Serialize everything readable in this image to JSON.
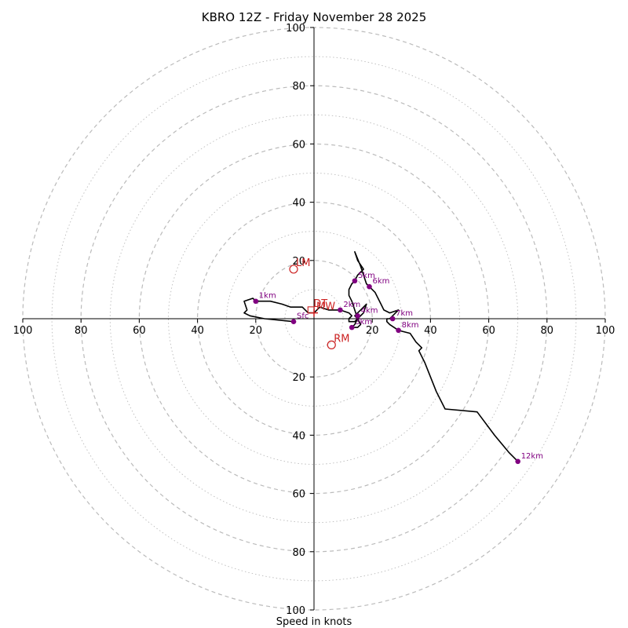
{
  "chart_data": {
    "type": "scatter",
    "subtype": "hodograph",
    "title": "KBRO 12Z - Friday November 28 2025",
    "xlabel": "Speed in knots",
    "ylabel": "",
    "xlim": [
      -100,
      100
    ],
    "ylim": [
      -100,
      100
    ],
    "ring_step_major": 20,
    "ring_step_minor": 10,
    "axis_tick_labels": [
      "100",
      "80",
      "60",
      "40",
      "20",
      "20",
      "40",
      "60",
      "80",
      "100"
    ],
    "axis_tick_values": [
      -100,
      -80,
      -60,
      -40,
      -20,
      20,
      40,
      60,
      80,
      100
    ],
    "colors": {
      "trace": "#000000",
      "height_marker": "#800080",
      "motion": "#cc2222",
      "grid": "#bbbbbb"
    },
    "trace": [
      [
        -7,
        -1
      ],
      [
        -17,
        0
      ],
      [
        -22,
        1
      ],
      [
        -24,
        2
      ],
      [
        -23,
        3
      ],
      [
        -24,
        6
      ],
      [
        -21,
        7
      ],
      [
        -20,
        6
      ],
      [
        -15,
        6
      ],
      [
        -11,
        5
      ],
      [
        -8,
        4
      ],
      [
        -4,
        4
      ],
      [
        -3,
        3
      ],
      [
        -2,
        2
      ],
      [
        0,
        2
      ],
      [
        2,
        4
      ],
      [
        5,
        3
      ],
      [
        9,
        3
      ],
      [
        12,
        2
      ],
      [
        13,
        1
      ],
      [
        12,
        0
      ],
      [
        12,
        -1
      ],
      [
        14,
        -1
      ],
      [
        15,
        0
      ],
      [
        17,
        2
      ],
      [
        18,
        5
      ],
      [
        16,
        3
      ],
      [
        15,
        2
      ],
      [
        14,
        1
      ],
      [
        15,
        0
      ],
      [
        14,
        -2
      ],
      [
        13,
        -3
      ],
      [
        15,
        -3
      ],
      [
        16,
        -2
      ],
      [
        15,
        0
      ],
      [
        14,
        3
      ],
      [
        13,
        6
      ],
      [
        12,
        8
      ],
      [
        12,
        10
      ],
      [
        13,
        12
      ],
      [
        14,
        13
      ],
      [
        15,
        15
      ],
      [
        17,
        17
      ],
      [
        15,
        20
      ],
      [
        14,
        23
      ],
      [
        16,
        18
      ],
      [
        17,
        15
      ],
      [
        18,
        12
      ],
      [
        19,
        11
      ],
      [
        21,
        9
      ],
      [
        22,
        7
      ],
      [
        23,
        5
      ],
      [
        24,
        3
      ],
      [
        26,
        2
      ],
      [
        29,
        3
      ],
      [
        28,
        2
      ],
      [
        27,
        1
      ],
      [
        26,
        0
      ],
      [
        25,
        0
      ],
      [
        25,
        -1
      ],
      [
        26,
        -2
      ],
      [
        29,
        -4
      ],
      [
        33,
        -5
      ],
      [
        35,
        -8
      ],
      [
        37,
        -10
      ],
      [
        36,
        -11
      ],
      [
        38,
        -15
      ],
      [
        40,
        -20
      ],
      [
        42,
        -25
      ],
      [
        45,
        -31
      ],
      [
        56,
        -32
      ],
      [
        62,
        -40
      ],
      [
        67,
        -46
      ],
      [
        70,
        -49
      ]
    ],
    "height_markers": [
      {
        "label": "Sfc",
        "u": -7,
        "v": -1
      },
      {
        "label": "1km",
        "u": -20,
        "v": 6
      },
      {
        "label": "2km",
        "u": 9,
        "v": 3
      },
      {
        "label": "3km",
        "u": 13,
        "v": -3
      },
      {
        "label": "4km",
        "u": 15,
        "v": 1
      },
      {
        "label": "5km",
        "u": 14,
        "v": 13
      },
      {
        "label": "6km",
        "u": 19,
        "v": 11
      },
      {
        "label": "7km",
        "u": 27,
        "v": 0
      },
      {
        "label": "8km",
        "u": 29,
        "v": -4
      },
      {
        "label": "12km",
        "u": 70,
        "v": -49
      }
    ],
    "storm_motions": [
      {
        "label": "LM",
        "u": -7,
        "v": 17,
        "symbol": "circle"
      },
      {
        "label": "RM",
        "u": 6,
        "v": -9,
        "symbol": "circle"
      },
      {
        "label": "MW",
        "u": 0,
        "v": 2,
        "symbol": "plus"
      },
      {
        "label": "DT",
        "u": -1,
        "v": 3,
        "symbol": "square"
      }
    ]
  }
}
